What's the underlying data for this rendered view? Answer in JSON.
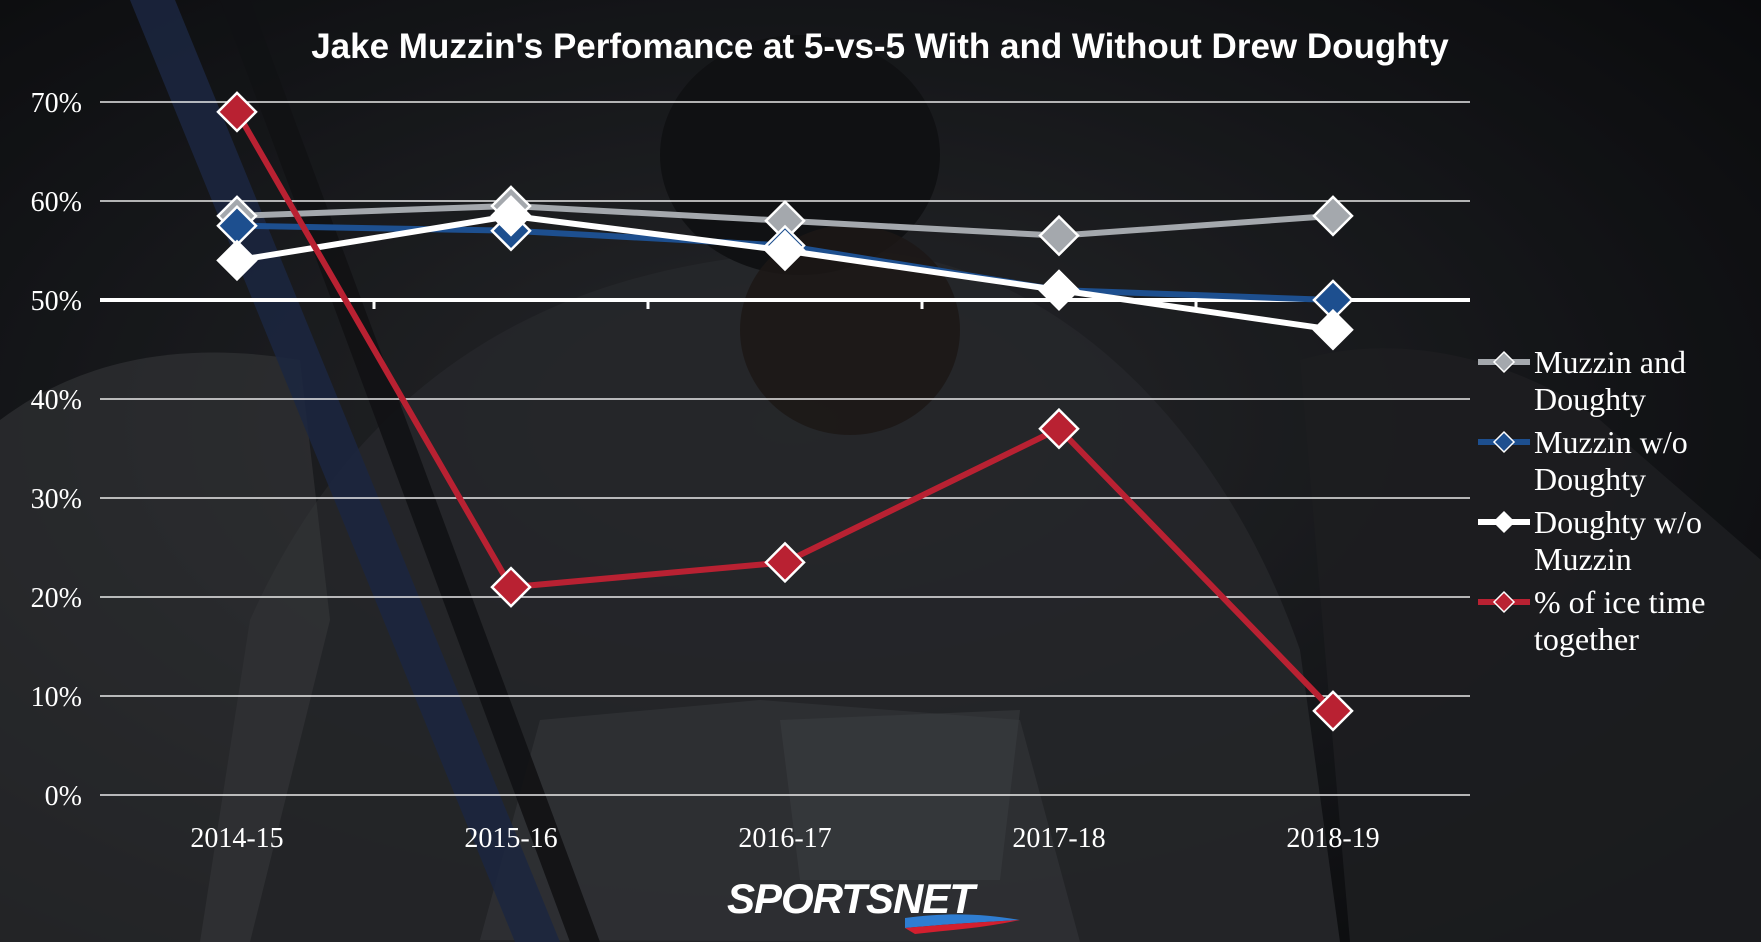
{
  "colors": {
    "muzzin_and_doughty": "#a4a8ad",
    "muzzin_without": "#1d4f8f",
    "doughty_without": "#ffffff",
    "ice_time": "#b92132",
    "gridline": "#ffffff",
    "logo_accent": "#2f7dd1",
    "logo_red": "#d31f2f"
  },
  "logo": {
    "text": "SPORTSNET"
  },
  "chart_data": {
    "type": "line",
    "title": "Jake Muzzin's Perfomance at 5-vs-5 With and Without Drew Doughty",
    "xlabel": "",
    "ylabel": "",
    "categories": [
      "2014-15",
      "2015-16",
      "2016-17",
      "2017-18",
      "2018-19"
    ],
    "ylim": [
      0,
      70
    ],
    "yticks": [
      0,
      10,
      20,
      30,
      40,
      50,
      60,
      70
    ],
    "ytick_labels": [
      "0%",
      "10%",
      "20%",
      "30%",
      "40%",
      "50%",
      "60%",
      "70%"
    ],
    "grid": true,
    "legend_position": "right",
    "series": [
      {
        "name": "Muzzin and Doughty",
        "legend_lines": [
          "Muzzin and",
          "Doughty"
        ],
        "color_key": "muzzin_and_doughty",
        "values": [
          58.5,
          59.5,
          58.0,
          56.5,
          58.5
        ]
      },
      {
        "name": "Muzzin w/o Doughty",
        "legend_lines": [
          "Muzzin w/o",
          "Doughty"
        ],
        "color_key": "muzzin_without",
        "values": [
          57.5,
          57.0,
          55.5,
          51.0,
          50.0
        ]
      },
      {
        "name": "Doughty w/o Muzzin",
        "legend_lines": [
          "Doughty w/o",
          "Muzzin"
        ],
        "color_key": "doughty_without",
        "values": [
          54.0,
          58.5,
          55.0,
          51.0,
          47.0
        ]
      },
      {
        "name": "% of ice time together",
        "legend_lines": [
          "% of ice time",
          "together"
        ],
        "color_key": "ice_time",
        "values": [
          69.0,
          21.0,
          23.5,
          37.0,
          8.5
        ]
      }
    ]
  }
}
